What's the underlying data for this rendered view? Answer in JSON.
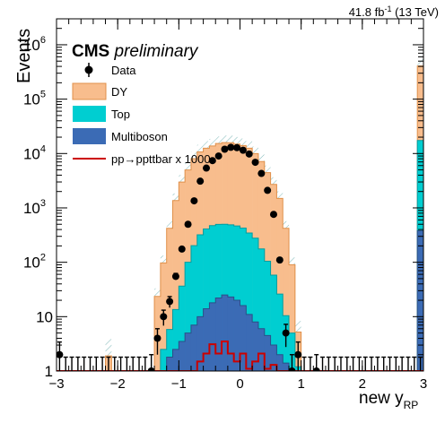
{
  "header": {
    "lumi": "41.8 fb",
    "lumi_exp": "-1",
    "energy": " (13 TeV)"
  },
  "cms": {
    "label": "CMS",
    "sub": "preliminary"
  },
  "chart_data": {
    "type": "bar",
    "title": "",
    "xlabel": "new y",
    "xlabel_sub": "RP",
    "ylabel": "Events",
    "xlim": [
      -3,
      3
    ],
    "ylim": [
      1,
      3000000
    ],
    "ylog": true,
    "xticks": [
      "−3",
      "−2",
      "−1",
      "0",
      "1",
      "2",
      "3"
    ],
    "yticks": [
      {
        "base": "1",
        "exp": ""
      },
      {
        "base": "10",
        "exp": ""
      },
      {
        "base": "10",
        "exp": "2"
      },
      {
        "base": "10",
        "exp": "3"
      },
      {
        "base": "10",
        "exp": "4"
      },
      {
        "base": "10",
        "exp": "5"
      },
      {
        "base": "10",
        "exp": "6"
      }
    ],
    "bins": [
      -3.0,
      -2.9,
      -2.8,
      -2.7,
      -2.6,
      -2.5,
      -2.4,
      -2.3,
      -2.2,
      -2.1,
      -2.0,
      -1.9,
      -1.8,
      -1.7,
      -1.6,
      -1.5,
      -1.4,
      -1.3,
      -1.2,
      -1.1,
      -1.0,
      -0.9,
      -0.8,
      -0.7,
      -0.6,
      -0.5,
      -0.4,
      -0.3,
      -0.2,
      -0.1,
      0.0,
      0.1,
      0.2,
      0.3,
      0.4,
      0.5,
      0.6,
      0.7,
      0.8,
      0.9,
      1.0,
      1.1,
      1.2,
      1.3,
      1.4,
      1.5,
      1.6,
      1.7,
      1.8,
      1.9,
      2.0,
      2.1,
      2.2,
      2.3,
      2.4,
      2.5,
      2.6,
      2.7,
      2.8,
      2.9,
      3.0
    ],
    "stack": [
      {
        "name": "Multiboson",
        "color": "#3B6BB5",
        "values": [
          0,
          0,
          0,
          0,
          0,
          0,
          0,
          0,
          0,
          0,
          0,
          0,
          0,
          0,
          0,
          0,
          0,
          1,
          1.8,
          2.5,
          3.5,
          5,
          7,
          10,
          14,
          18,
          22,
          25,
          23,
          20,
          16,
          11,
          8,
          6,
          4.5,
          3,
          2,
          1.4,
          0,
          0,
          0,
          0,
          0,
          0,
          0,
          0,
          0,
          0,
          0,
          0,
          0,
          0,
          0,
          0,
          0,
          0,
          0,
          0,
          0,
          380
        ]
      },
      {
        "name": "Top",
        "color": "#00CED1",
        "values": [
          0,
          0,
          0,
          0,
          0,
          0,
          0,
          0,
          0,
          0,
          0,
          0,
          0,
          0,
          0,
          0,
          0.5,
          1.5,
          4,
          11,
          33,
          95,
          195,
          310,
          395,
          455,
          475,
          475,
          465,
          445,
          410,
          335,
          270,
          170,
          100,
          55,
          24,
          9,
          5,
          1.2,
          0,
          0,
          0,
          0,
          0,
          0,
          0,
          0,
          0,
          0,
          0,
          0,
          0,
          0,
          0,
          0,
          0,
          0,
          0,
          17000
        ]
      },
      {
        "name": "DY",
        "color": "#F8BD8D",
        "values": [
          0,
          0,
          0,
          0,
          0,
          0,
          0,
          0,
          1.9,
          0,
          0,
          0,
          0,
          0,
          0,
          0,
          23,
          95,
          415,
          1350,
          2950,
          4900,
          7850,
          10400,
          12100,
          13300,
          14800,
          15400,
          15300,
          14450,
          13600,
          12150,
          9700,
          6950,
          4350,
          2650,
          1470,
          410,
          85,
          4,
          0,
          0,
          0,
          0,
          0,
          0,
          0,
          0,
          0,
          0,
          0,
          0,
          0,
          0,
          0,
          0,
          0,
          0,
          0,
          390000
        ]
      }
    ],
    "signal": {
      "name": "pp→ppttbar x 1000",
      "color": "#CC0000",
      "values": [
        0,
        0,
        0,
        0,
        0,
        0,
        0,
        0,
        0,
        0,
        0,
        0,
        0,
        0,
        0,
        0,
        0,
        0,
        0,
        0,
        0,
        0,
        0,
        1.5,
        2.1,
        3.1,
        2.1,
        3.5,
        2.1,
        1.5,
        2.1,
        1.1,
        1.5,
        2.1,
        1.1,
        1.3,
        0,
        0,
        0,
        0,
        0,
        0,
        0,
        0,
        0,
        0,
        0,
        0,
        0,
        0,
        0,
        0,
        0,
        0,
        0,
        0,
        0,
        0,
        0,
        0
      ]
    },
    "data": {
      "name": "Data",
      "color": "#000000",
      "x": [
        -2.95,
        -2.85,
        -2.75,
        -2.65,
        -2.55,
        -2.45,
        -2.35,
        -2.25,
        -2.15,
        -2.05,
        -1.95,
        -1.85,
        -1.75,
        -1.65,
        -1.55,
        -1.45,
        -1.35,
        -1.25,
        -1.15,
        -1.05,
        -0.95,
        -0.85,
        -0.75,
        -0.65,
        -0.55,
        -0.45,
        -0.35,
        -0.25,
        -0.15,
        -0.05,
        0.05,
        0.15,
        0.25,
        0.35,
        0.45,
        0.55,
        0.65,
        0.75,
        0.85,
        0.95,
        1.05,
        1.15,
        1.25,
        1.35,
        1.45,
        1.55,
        1.65,
        1.75,
        1.85,
        1.95,
        2.05,
        2.15,
        2.25,
        2.35,
        2.45,
        2.55,
        2.65,
        2.75,
        2.85,
        2.95
      ],
      "y": [
        2,
        0,
        0,
        0,
        0,
        0,
        0,
        0,
        0,
        0,
        0,
        0,
        0,
        0,
        0,
        1,
        4,
        10,
        19,
        55,
        175,
        500,
        1350,
        3100,
        5400,
        7400,
        9000,
        12000,
        13000,
        12800,
        11500,
        9800,
        6900,
        4300,
        2100,
        760,
        110,
        5,
        1,
        2,
        0,
        0,
        1,
        0,
        0,
        0,
        0,
        0,
        0,
        0,
        0,
        0,
        0,
        0,
        0,
        0,
        0,
        0,
        0,
        0
      ]
    },
    "legend": [
      "Data",
      "DY",
      "Top",
      "Multiboson",
      "pp→ppttbar x 1000"
    ],
    "legend_position": "top-left",
    "grid": false
  }
}
